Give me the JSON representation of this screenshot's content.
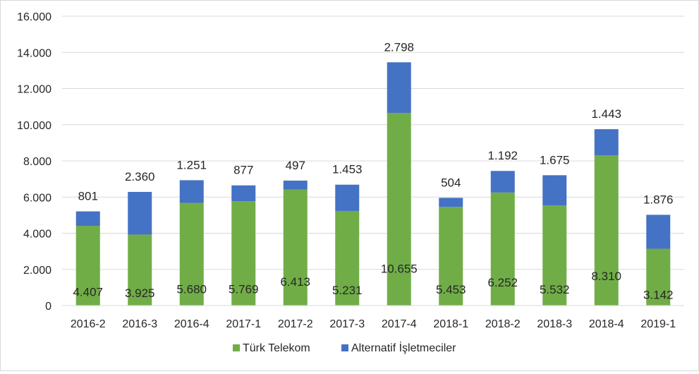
{
  "chart_data": {
    "type": "bar",
    "stacked": true,
    "categories": [
      "2016-2",
      "2016-3",
      "2016-4",
      "2017-1",
      "2017-2",
      "2017-3",
      "2017-4",
      "2018-1",
      "2018-2",
      "2018-3",
      "2018-4",
      "2019-1"
    ],
    "series": [
      {
        "name": "Türk Telekom",
        "color": "#70ad47",
        "values": [
          4407,
          3925,
          5680,
          5769,
          6413,
          5231,
          10655,
          5453,
          6252,
          5532,
          8310,
          3142
        ],
        "labels": [
          "4.407",
          "3.925",
          "5.680",
          "5.769",
          "6.413",
          "5.231",
          "10.655",
          "5.453",
          "6.252",
          "5.532",
          "8.310",
          "3.142"
        ]
      },
      {
        "name": "Alternatif İşletmeciler",
        "color": "#4472c4",
        "values": [
          801,
          2360,
          1251,
          877,
          497,
          1453,
          2798,
          504,
          1192,
          1675,
          1443,
          1876
        ],
        "labels": [
          "801",
          "2.360",
          "1.251",
          "877",
          "497",
          "1.453",
          "2.798",
          "504",
          "1.192",
          "1.675",
          "1.443",
          "1.876"
        ]
      }
    ],
    "yticks": [
      0,
      2000,
      4000,
      6000,
      8000,
      10000,
      12000,
      14000,
      16000
    ],
    "ytick_labels": [
      "0",
      "2.000",
      "4.000",
      "6.000",
      "8.000",
      "10.000",
      "12.000",
      "14.000",
      "16.000"
    ],
    "ylim": [
      0,
      16000
    ],
    "grid": true,
    "legend_position": "bottom"
  }
}
